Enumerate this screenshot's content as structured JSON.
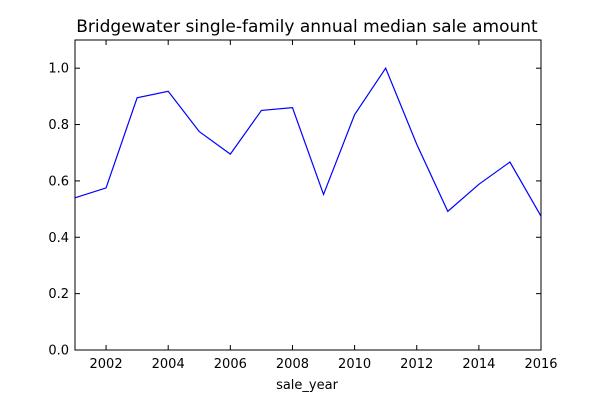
{
  "chart_data": {
    "type": "line",
    "title": "Bridgewater single-family annual median sale amount",
    "xlabel": "sale_year",
    "ylabel": "",
    "xlim": [
      2001,
      2016
    ],
    "ylim": [
      0.0,
      1.1
    ],
    "x_ticks": [
      2002,
      2004,
      2006,
      2008,
      2010,
      2012,
      2014,
      2016
    ],
    "y_ticks": [
      0.0,
      0.2,
      0.4,
      0.6,
      0.8,
      1.0
    ],
    "x_tick_labels": [
      "2002",
      "2004",
      "2006",
      "2008",
      "2010",
      "2012",
      "2014",
      "2016"
    ],
    "y_tick_labels": [
      "0.0",
      "0.2",
      "0.4",
      "0.6",
      "0.8",
      "1.0"
    ],
    "grid": false,
    "legend": "none",
    "line_color": "#0000ff",
    "series": [
      {
        "x": [
          2001,
          2002,
          2003,
          2004,
          2005,
          2006,
          2007,
          2008,
          2009,
          2010,
          2011,
          2012,
          2013,
          2014,
          2015,
          2016
        ],
        "y": [
          0.54,
          0.575,
          0.895,
          0.918,
          0.775,
          0.695,
          0.85,
          0.86,
          0.552,
          0.835,
          1.0,
          0.73,
          0.492,
          0.588,
          0.667,
          0.475
        ]
      }
    ]
  }
}
